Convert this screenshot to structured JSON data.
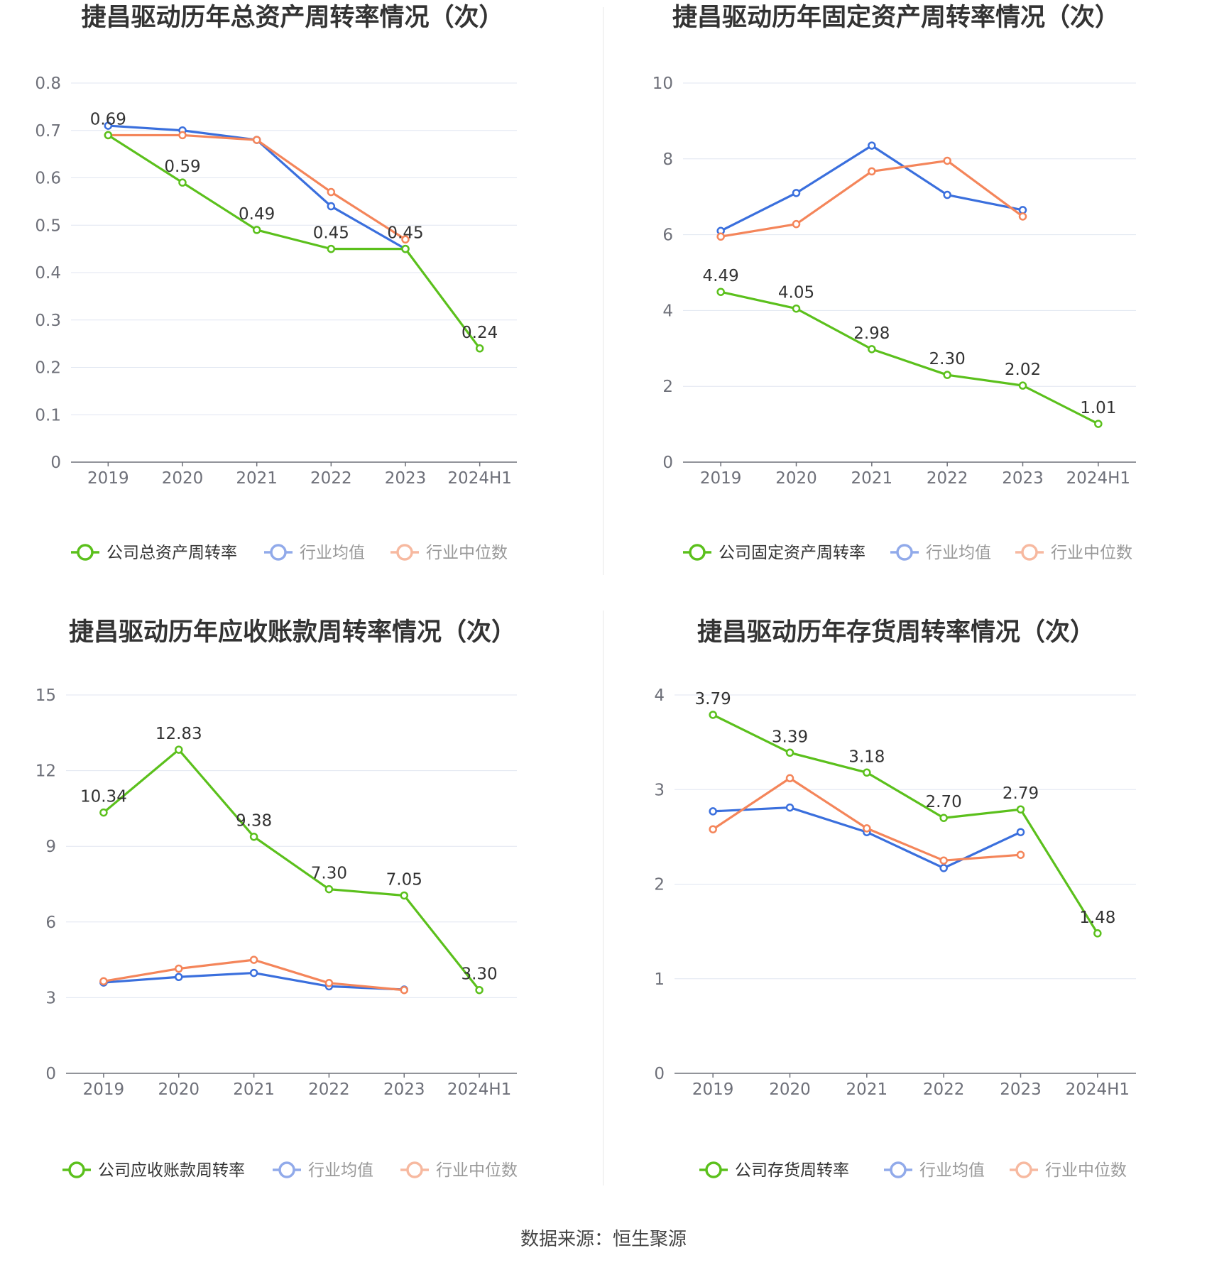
{
  "colors": {
    "company": "#5bc01c",
    "avg": "#3a6fdd",
    "median": "#f4855a",
    "legend_avg": "#91aaea",
    "legend_median": "#f7b9a0"
  },
  "source": "数据来源：恒生聚源",
  "chart_data": [
    {
      "type": "line",
      "title": "捷昌驱动历年总资产周转率情况（次）",
      "categories": [
        "2019",
        "2020",
        "2021",
        "2022",
        "2023",
        "2024H1"
      ],
      "ylim": [
        0,
        0.8
      ],
      "yticks": [
        "0",
        "0.1",
        "0.2",
        "0.3",
        "0.4",
        "0.5",
        "0.6",
        "0.7",
        "0.8"
      ],
      "grid": true,
      "legend_position": "bottom",
      "series": [
        {
          "name": "公司总资产周转率",
          "key": "company",
          "values": [
            0.69,
            0.59,
            0.49,
            0.45,
            0.45,
            0.24
          ],
          "labels": [
            "0.69",
            "0.59",
            "0.49",
            "0.45",
            "0.45",
            "0.24"
          ]
        },
        {
          "name": "行业均值",
          "key": "avg",
          "values": [
            0.71,
            0.7,
            0.68,
            0.54,
            0.45,
            null
          ]
        },
        {
          "name": "行业中位数",
          "key": "median",
          "values": [
            0.69,
            0.69,
            0.68,
            0.57,
            0.47,
            null
          ]
        }
      ]
    },
    {
      "type": "line",
      "title": "捷昌驱动历年固定资产周转率情况（次）",
      "categories": [
        "2019",
        "2020",
        "2021",
        "2022",
        "2023",
        "2024H1"
      ],
      "ylim": [
        0,
        10
      ],
      "yticks": [
        "0",
        "2",
        "4",
        "6",
        "8",
        "10"
      ],
      "grid": true,
      "legend_position": "bottom",
      "series": [
        {
          "name": "公司固定资产周转率",
          "key": "company",
          "values": [
            4.49,
            4.05,
            2.98,
            2.3,
            2.02,
            1.01
          ],
          "labels": [
            "4.49",
            "4.05",
            "2.98",
            "2.30",
            "2.02",
            "1.01"
          ]
        },
        {
          "name": "行业均值",
          "key": "avg",
          "values": [
            6.1,
            7.1,
            8.35,
            7.05,
            6.65,
            null
          ]
        },
        {
          "name": "行业中位数",
          "key": "median",
          "values": [
            5.95,
            6.28,
            7.67,
            7.95,
            6.48,
            null
          ]
        }
      ]
    },
    {
      "type": "line",
      "title": "捷昌驱动历年应收账款周转率情况（次）",
      "categories": [
        "2019",
        "2020",
        "2021",
        "2022",
        "2023",
        "2024H1"
      ],
      "ylim": [
        0,
        15
      ],
      "yticks": [
        "0",
        "3",
        "6",
        "9",
        "12",
        "15"
      ],
      "grid": true,
      "legend_position": "bottom",
      "series": [
        {
          "name": "公司应收账款周转率",
          "key": "company",
          "values": [
            10.34,
            12.83,
            9.38,
            7.3,
            7.05,
            3.3
          ],
          "labels": [
            "10.34",
            "12.83",
            "9.38",
            "7.30",
            "7.05",
            "3.30"
          ]
        },
        {
          "name": "行业均值",
          "key": "avg",
          "values": [
            3.6,
            3.82,
            3.98,
            3.45,
            3.32,
            null
          ]
        },
        {
          "name": "行业中位数",
          "key": "median",
          "values": [
            3.65,
            4.15,
            4.5,
            3.58,
            3.3,
            null
          ]
        }
      ]
    },
    {
      "type": "line",
      "title": "捷昌驱动历年存货周转率情况（次）",
      "categories": [
        "2019",
        "2020",
        "2021",
        "2022",
        "2023",
        "2024H1"
      ],
      "ylim": [
        0,
        4
      ],
      "yticks": [
        "0",
        "1",
        "2",
        "3",
        "4"
      ],
      "grid": true,
      "legend_position": "bottom",
      "series": [
        {
          "name": "公司存货周转率",
          "key": "company",
          "values": [
            3.79,
            3.39,
            3.18,
            2.7,
            2.79,
            1.48
          ],
          "labels": [
            "3.79",
            "3.39",
            "3.18",
            "2.70",
            "2.79",
            "1.48"
          ]
        },
        {
          "name": "行业均值",
          "key": "avg",
          "values": [
            2.77,
            2.81,
            2.55,
            2.17,
            2.55,
            null
          ]
        },
        {
          "name": "行业中位数",
          "key": "median",
          "values": [
            2.58,
            3.12,
            2.59,
            2.25,
            2.31,
            null
          ]
        }
      ]
    }
  ]
}
